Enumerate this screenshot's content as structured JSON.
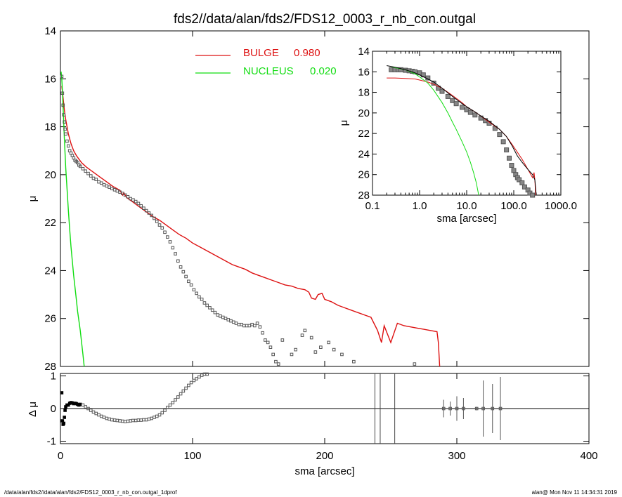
{
  "title": "fds2//data/alan/fds2/FDS12_0003_r_nb_con.outgal",
  "footer_left": "/data/alan/fds2//data/alan/fds2/FDS12_0003_r_nb_con.outgal_1dprof",
  "footer_right": "alan@  Mon Nov 11 14:34:31 2019",
  "colors": {
    "bulge": "#dd1111",
    "nucleus": "#11dd11",
    "data": "#555555",
    "axis": "#000000"
  },
  "chart_data": [
    {
      "id": "main",
      "type": "line",
      "xlim": [
        0,
        400
      ],
      "ylim": [
        28,
        14
      ],
      "xlabel": "",
      "ylabel": "μ",
      "y_ticks": [
        14,
        16,
        18,
        20,
        22,
        24,
        26,
        28
      ],
      "legend": [
        {
          "name": "BULGE",
          "value": "0.980",
          "color": "#dd1111"
        },
        {
          "name": "NUCLEUS",
          "value": "0.020",
          "color": "#11dd11"
        }
      ],
      "legend_placement": "top-center",
      "series": {
        "data_points": {
          "x": [
            1,
            1.5,
            2,
            2.5,
            3,
            3.5,
            4,
            5,
            6,
            7,
            8,
            9,
            10,
            11,
            12,
            13,
            14,
            15,
            17,
            19,
            21,
            23,
            25,
            27,
            29,
            31,
            33,
            35,
            37,
            39,
            41,
            43,
            45,
            47,
            49,
            51,
            53,
            55,
            57,
            59,
            61,
            63,
            65,
            67,
            69,
            71,
            73,
            75,
            77,
            79,
            81,
            83,
            85,
            87,
            89,
            91,
            93,
            95,
            97,
            99,
            101,
            103,
            105,
            107,
            109,
            111,
            113,
            115,
            117,
            119,
            121,
            123,
            125,
            127,
            129,
            131,
            133,
            135,
            137,
            139,
            141,
            143,
            145,
            147,
            149,
            151,
            153,
            155,
            157,
            159,
            161,
            163,
            165,
            168,
            175,
            178,
            183,
            185,
            190,
            193,
            197,
            203,
            207,
            213,
            222,
            268
          ],
          "y": [
            15.9,
            16.6,
            17.1,
            17.5,
            17.8,
            18.1,
            18.3,
            18.6,
            18.8,
            19.0,
            19.1,
            19.2,
            19.3,
            19.4,
            19.45,
            19.5,
            19.6,
            19.65,
            19.75,
            19.85,
            19.95,
            20.05,
            20.15,
            20.2,
            20.3,
            20.35,
            20.42,
            20.47,
            20.52,
            20.58,
            20.63,
            20.68,
            20.73,
            20.78,
            20.85,
            20.92,
            21.0,
            21.05,
            21.12,
            21.2,
            21.3,
            21.4,
            21.5,
            21.6,
            21.7,
            21.82,
            21.95,
            22.1,
            22.22,
            22.4,
            22.6,
            22.8,
            23.05,
            23.3,
            23.6,
            23.85,
            24.05,
            24.25,
            24.45,
            24.6,
            24.8,
            24.95,
            25.1,
            25.2,
            25.35,
            25.45,
            25.55,
            25.65,
            25.75,
            25.85,
            25.9,
            25.95,
            26.0,
            26.05,
            26.1,
            26.15,
            26.2,
            26.25,
            26.25,
            26.3,
            26.3,
            26.3,
            26.25,
            26.3,
            26.2,
            26.35,
            26.6,
            26.9,
            27.0,
            27.2,
            27.5,
            27.8,
            27.9,
            26.9,
            27.5,
            27.3,
            26.7,
            26.5,
            26.8,
            27.4,
            27.2,
            27.0,
            27.3,
            27.5,
            27.8,
            27.9
          ]
        },
        "bulge": {
          "x": [
            1,
            2,
            3,
            4,
            5,
            6,
            8,
            10,
            12,
            14,
            16,
            18,
            20,
            25,
            30,
            35,
            40,
            45,
            47,
            48,
            50,
            55,
            60,
            65,
            70,
            75,
            80,
            85,
            90,
            95,
            100,
            105,
            110,
            115,
            120,
            125,
            130,
            135,
            140,
            145,
            150,
            155,
            160,
            165,
            170,
            175,
            180,
            185,
            188,
            190,
            193,
            195,
            198,
            200,
            205,
            210,
            215,
            220,
            225,
            230,
            235,
            240,
            243,
            245,
            250,
            255,
            260,
            265,
            270,
            275,
            280,
            285,
            286,
            287
          ],
          "y": [
            16.3,
            16.8,
            17.3,
            17.7,
            18.0,
            18.3,
            18.7,
            19.0,
            19.2,
            19.35,
            19.5,
            19.6,
            19.7,
            19.9,
            20.1,
            20.3,
            20.5,
            20.65,
            20.85,
            20.75,
            20.95,
            21.15,
            21.35,
            21.55,
            21.75,
            21.9,
            22.1,
            22.3,
            22.5,
            22.65,
            22.85,
            23.0,
            23.15,
            23.3,
            23.45,
            23.6,
            23.75,
            23.85,
            23.95,
            24.1,
            24.2,
            24.3,
            24.4,
            24.5,
            24.6,
            24.65,
            24.75,
            24.8,
            24.9,
            25.15,
            25.2,
            25.0,
            24.95,
            25.2,
            25.3,
            25.45,
            25.55,
            25.65,
            25.75,
            25.85,
            25.95,
            26.5,
            27.0,
            26.3,
            27.0,
            26.2,
            26.3,
            26.35,
            26.4,
            26.45,
            26.5,
            26.55,
            27.0,
            28
          ]
        },
        "nucleus": {
          "x": [
            0.5,
            1,
            1.5,
            2,
            3,
            4,
            5,
            6,
            7,
            8,
            9,
            10,
            11,
            12,
            13,
            14,
            15,
            16,
            17,
            18
          ],
          "y": [
            15.7,
            16.0,
            16.5,
            17.2,
            18.5,
            19.7,
            20.6,
            21.5,
            22.3,
            23.0,
            23.6,
            24.2,
            24.7,
            25.2,
            25.7,
            26.1,
            26.5,
            27.0,
            27.5,
            28
          ]
        }
      }
    },
    {
      "id": "inset",
      "type": "line",
      "x_scale": "log",
      "xlim": [
        0.1,
        1000
      ],
      "ylim": [
        28,
        14
      ],
      "xlabel": "sma [arcsec]",
      "ylabel": "μ",
      "x_ticks": [
        0.1,
        1,
        10,
        100,
        1000
      ],
      "x_tick_labels": [
        "0.1",
        "1.0",
        "10.0",
        "100.0",
        "1000.0"
      ],
      "y_ticks": [
        14,
        16,
        18,
        20,
        22,
        24,
        26,
        28
      ],
      "series": {
        "data_points": {
          "x": [
            0.25,
            0.3,
            0.35,
            0.4,
            0.5,
            0.6,
            0.7,
            0.8,
            1,
            1.2,
            1.5,
            2,
            2.5,
            3,
            4,
            5,
            6,
            8,
            10,
            12,
            15,
            20,
            25,
            30,
            40,
            50,
            60,
            70,
            80,
            90,
            100,
            110,
            120,
            130,
            150,
            170,
            200,
            220,
            250
          ],
          "y": [
            15.8,
            15.8,
            15.8,
            15.8,
            15.85,
            15.9,
            15.95,
            16.0,
            16.1,
            16.3,
            16.6,
            17.1,
            17.6,
            17.9,
            18.4,
            18.8,
            19.1,
            19.45,
            19.7,
            19.95,
            20.2,
            20.5,
            20.75,
            21.0,
            21.5,
            22.1,
            22.8,
            23.6,
            24.4,
            25.1,
            25.6,
            26.0,
            26.3,
            26.5,
            26.8,
            27.2,
            27.5,
            27.8,
            28
          ]
        },
        "bulge": {
          "x": [
            0.2,
            0.3,
            0.5,
            0.8,
            1,
            1.5,
            2,
            3,
            5,
            8,
            10,
            15,
            20,
            30,
            50,
            70,
            100,
            150,
            200,
            250,
            270,
            280,
            290
          ],
          "y": [
            16.6,
            16.6,
            16.65,
            16.7,
            16.8,
            17.0,
            17.2,
            17.6,
            18.3,
            19.0,
            19.4,
            19.9,
            20.3,
            20.9,
            21.6,
            22.3,
            23.3,
            24.5,
            25.5,
            26.3,
            25.8,
            26.5,
            28
          ]
        },
        "model_total": {
          "x": [
            0.2,
            0.3,
            0.5,
            0.8,
            1,
            1.5,
            2,
            3,
            5,
            8,
            10,
            15,
            20,
            30,
            50,
            70,
            90,
            120,
            150,
            200,
            250,
            280,
            300
          ],
          "y": [
            15.4,
            15.55,
            15.8,
            16.1,
            16.3,
            16.7,
            17.0,
            17.6,
            18.4,
            19.1,
            19.4,
            19.9,
            20.3,
            20.8,
            21.6,
            22.3,
            23.1,
            24.2,
            24.8,
            25.5,
            26.0,
            26.5,
            28
          ]
        },
        "nucleus": {
          "x": [
            0.25,
            0.3,
            0.5,
            0.8,
            1,
            1.5,
            2,
            3,
            4,
            5,
            6,
            8,
            10,
            12,
            14,
            16,
            17,
            18
          ],
          "y": [
            15.5,
            15.6,
            15.8,
            16.2,
            16.5,
            17.1,
            17.8,
            19.0,
            20.0,
            20.9,
            21.6,
            22.8,
            23.8,
            24.8,
            25.8,
            26.8,
            27.4,
            28
          ]
        }
      }
    },
    {
      "id": "residual",
      "type": "scatter",
      "xlim": [
        0,
        400
      ],
      "ylim": [
        -1,
        1
      ],
      "xlabel": "sma [arcsec]",
      "ylabel": "Δ μ",
      "x_ticks": [
        0,
        100,
        200,
        300,
        400
      ],
      "y_ticks": [
        -1,
        0,
        1
      ],
      "series": {
        "residuals": {
          "x": [
            1,
            1.5,
            2,
            2.5,
            3,
            3.5,
            4,
            5,
            6,
            7,
            8,
            9,
            10,
            11,
            12,
            13,
            14,
            15,
            17,
            19,
            21,
            23,
            25,
            27,
            29,
            31,
            33,
            35,
            37,
            39,
            41,
            43,
            45,
            47,
            49,
            51,
            53,
            55,
            57,
            59,
            61,
            63,
            65,
            67,
            69,
            71,
            73,
            75,
            77,
            79,
            81,
            83,
            85,
            87,
            89,
            91,
            93,
            95,
            97,
            99,
            101,
            103,
            105,
            107,
            109,
            111
          ],
          "y": [
            0.45,
            -0.35,
            -0.45,
            -0.42,
            -0.25,
            -0.05,
            0.05,
            0.1,
            0.1,
            0.15,
            0.17,
            0.16,
            0.14,
            0.15,
            0.14,
            0.12,
            0.1,
            0.12,
            0.1,
            0.05,
            0.0,
            -0.05,
            -0.1,
            -0.14,
            -0.18,
            -0.22,
            -0.25,
            -0.28,
            -0.3,
            -0.32,
            -0.33,
            -0.34,
            -0.35,
            -0.36,
            -0.37,
            -0.36,
            -0.35,
            -0.34,
            -0.34,
            -0.33,
            -0.33,
            -0.32,
            -0.32,
            -0.3,
            -0.28,
            -0.25,
            -0.22,
            -0.18,
            -0.12,
            -0.05,
            0.03,
            0.1,
            0.17,
            0.25,
            0.33,
            0.42,
            0.5,
            0.58,
            0.66,
            0.74,
            0.8,
            0.85,
            0.9,
            0.95,
            0.98,
            1.0
          ]
        },
        "tail_points": {
          "x": [
            290,
            295,
            300,
            305,
            315,
            320,
            327,
            333
          ],
          "y": [
            0,
            0,
            0,
            0,
            0,
            0,
            0,
            0
          ],
          "err": [
            0.25,
            0.2,
            0.35,
            0.3,
            0.05,
            0.8,
            0.7,
            0.9
          ]
        },
        "vertical_lines_x": [
          238,
          242,
          253
        ]
      }
    }
  ]
}
